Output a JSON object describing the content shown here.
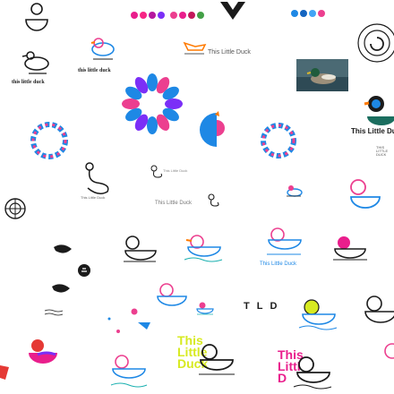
{
  "board": {
    "brand_name_lower": "this little duck",
    "brand_name_title": "This Little Duck",
    "brand_name_upper": "THIS LITTLE DUCK",
    "monogram": "TLD",
    "wordmark_lines": [
      "This",
      "Little",
      "Duck"
    ],
    "stacked_title": [
      "This",
      "Littl",
      "D"
    ],
    "stacked_title_2": [
      "Thi",
      "Litt",
      "Du"
    ],
    "badge_ring_text": "This Little Duck"
  },
  "palette": {
    "blue": "#1e88e5",
    "pink": "#ec3f8f",
    "magenta": "#e91e8c",
    "purple": "#7b2ff7",
    "orange": "#ff7a00",
    "teal": "#1ab0b0",
    "yellow": "#d7ea21",
    "red": "#e53935",
    "black": "#1b1b1b",
    "swatches_a": [
      "#e91e8c",
      "#f72585",
      "#b5179e",
      "#7b2ff7"
    ],
    "swatches_b": [
      "#ec3f8f",
      "#e91e8c",
      "#c2185b",
      "#43a047"
    ],
    "swatches_c": [
      "#1e88e5",
      "#1565c0",
      "#42a5f5",
      "#ec3f8f"
    ]
  },
  "icons": {
    "duck_outline": "duck-outline-icon",
    "duck_color": "duck-color-icon",
    "boat": "boat-icon",
    "wheel": "wheel-icon",
    "wave": "wave-icon"
  }
}
